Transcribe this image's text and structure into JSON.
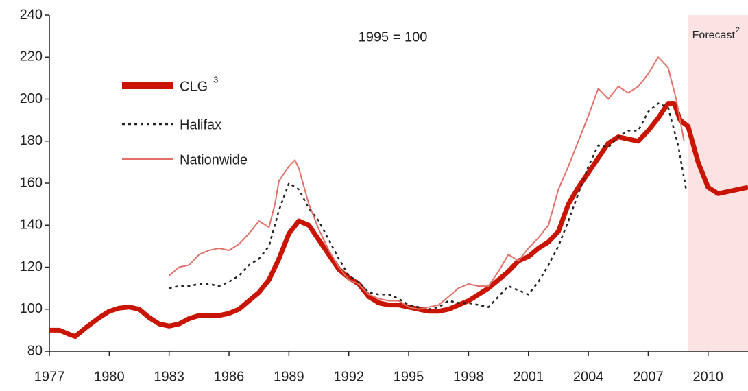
{
  "chart_data": {
    "type": "line",
    "annotation": "1995 = 100",
    "forecast": {
      "label": "Forecast",
      "note": "2",
      "start": 2009,
      "color": "#fbe3e3"
    },
    "xlim": [
      1977,
      2012
    ],
    "xticks": [
      1977,
      1980,
      1983,
      1986,
      1989,
      1992,
      1995,
      1998,
      2001,
      2004,
      2007,
      2010
    ],
    "ylim": [
      80,
      240
    ],
    "yticks": [
      80,
      100,
      120,
      140,
      160,
      180,
      200,
      220,
      240
    ],
    "series": [
      {
        "name": "CLG",
        "note": "3",
        "color": "#c81400",
        "style": "solid",
        "width": 7,
        "x": [
          1977,
          1977.5,
          1978,
          1978.3,
          1978.8,
          1979.5,
          1980,
          1980.5,
          1981,
          1981.5,
          1982,
          1982.5,
          1983,
          1983.5,
          1984,
          1984.5,
          1985,
          1985.5,
          1986,
          1986.5,
          1987,
          1987.5,
          1988,
          1988.5,
          1989,
          1989.5,
          1990,
          1990.5,
          1991,
          1991.5,
          1992,
          1992.5,
          1993,
          1993.5,
          1994,
          1994.5,
          1995,
          1995.5,
          1996,
          1996.5,
          1997,
          1997.5,
          1998,
          1998.5,
          1999,
          1999.5,
          2000,
          2000.5,
          2001,
          2001.5,
          2002,
          2002.5,
          2003,
          2003.5,
          2004,
          2004.5,
          2005,
          2005.5,
          2006,
          2006.5,
          2007,
          2007.5,
          2008,
          2008.3,
          2008.6,
          2009,
          2009.5,
          2010,
          2010.5,
          2011,
          2011.5,
          2012
        ],
        "values": [
          90,
          90,
          88,
          87,
          91,
          96,
          99,
          100.5,
          101,
          100,
          96,
          93,
          92,
          93,
          95.5,
          97,
          97,
          97,
          98,
          100,
          104,
          108,
          114,
          124,
          136,
          142,
          140,
          133,
          126,
          119,
          115,
          112,
          106,
          103,
          102,
          102,
          101,
          100,
          99,
          99,
          100,
          102,
          104,
          107,
          110,
          114,
          118,
          123,
          125,
          129,
          132,
          137,
          150,
          158,
          165,
          172,
          179,
          182,
          181,
          180,
          185,
          191,
          198,
          198,
          190,
          187,
          170,
          158,
          155,
          156,
          157,
          158
        ]
      },
      {
        "name": "Halifax",
        "color": "#222222",
        "style": "dotted",
        "width": 2.5,
        "x": [
          1983,
          1983.5,
          1984,
          1984.5,
          1985,
          1985.5,
          1986,
          1986.5,
          1987,
          1987.5,
          1988,
          1988.5,
          1989,
          1989.5,
          1990,
          1990.5,
          1991,
          1991.5,
          1992,
          1992.5,
          1993,
          1993.5,
          1994,
          1994.5,
          1995,
          1995.5,
          1996,
          1996.5,
          1997,
          1997.5,
          1998,
          1998.5,
          1999,
          1999.5,
          2000,
          2000.5,
          2001,
          2001.5,
          2002,
          2002.5,
          2003,
          2003.5,
          2004,
          2004.5,
          2005,
          2005.5,
          2006,
          2006.5,
          2007,
          2007.5,
          2008,
          2008.5,
          2008.9
        ],
        "values": [
          110,
          111,
          111,
          112,
          112,
          111,
          113,
          116,
          121,
          124,
          130,
          147,
          160,
          157,
          148,
          142,
          133,
          124,
          116,
          113,
          108,
          107,
          107,
          105,
          102,
          101,
          100,
          101,
          104,
          103,
          103,
          102,
          101,
          106,
          111,
          109,
          107,
          113,
          121,
          130,
          142,
          155,
          168,
          178,
          177,
          182,
          185,
          185,
          194,
          198,
          196,
          178,
          157
        ]
      },
      {
        "name": "Nationwide",
        "color": "#e07068",
        "style": "solid",
        "width": 2,
        "x": [
          1983,
          1983.5,
          1984,
          1984.5,
          1985,
          1985.5,
          1986,
          1986.5,
          1987,
          1987.5,
          1988,
          1988.3,
          1988.5,
          1989,
          1989.3,
          1989.5,
          1990,
          1990.5,
          1991,
          1991.5,
          1992,
          1992.5,
          1993,
          1993.5,
          1994,
          1994.5,
          1995,
          1995.5,
          1996,
          1996.5,
          1997,
          1997.5,
          1998,
          1998.5,
          1999,
          1999.5,
          2000,
          2000.5,
          2001,
          2001.5,
          2002,
          2002.5,
          2003,
          2003.5,
          2004,
          2004.5,
          2005,
          2005.5,
          2006,
          2006.5,
          2007,
          2007.5,
          2008,
          2008.4,
          2008.8
        ],
        "values": [
          116,
          120,
          121,
          126,
          128,
          129,
          128,
          131,
          136,
          142,
          139,
          150,
          161,
          168,
          171,
          167,
          150,
          138,
          128,
          120,
          114,
          112,
          107,
          105,
          104,
          104,
          101,
          100,
          101,
          102,
          106,
          110,
          112,
          111,
          111,
          118,
          126,
          123,
          129,
          134,
          140,
          157,
          168,
          180,
          192,
          205,
          200,
          206,
          203,
          206,
          212,
          220,
          215,
          200,
          180
        ]
      }
    ]
  }
}
